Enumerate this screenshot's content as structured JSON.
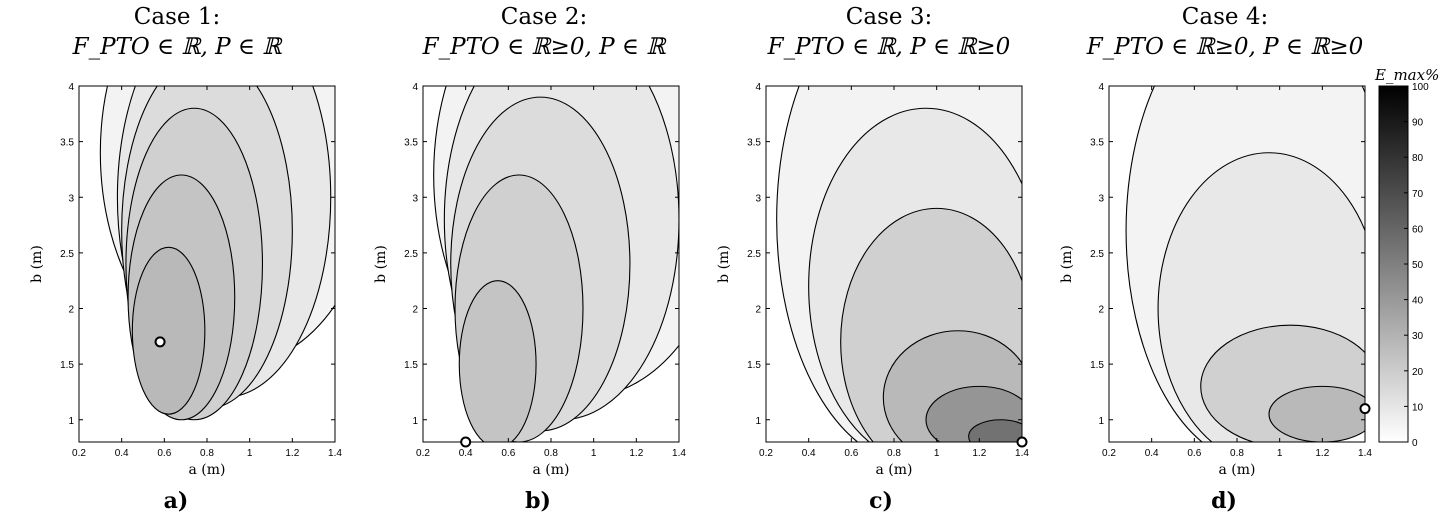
{
  "chart_data": [
    {
      "type": "contour",
      "panel": "a)",
      "title_line1": "Case 1:",
      "title_line2": "F_PTO ∈ ℝ, P ∈ ℝ",
      "xlabel": "a (m)",
      "ylabel": "b (m)",
      "xlim": [
        0.2,
        1.4
      ],
      "ylim": [
        0.8,
        4
      ],
      "xticks": [
        0.2,
        0.4,
        0.6,
        0.8,
        1,
        1.2,
        1.4
      ],
      "yticks": [
        1,
        1.5,
        2,
        2.5,
        3,
        3.5,
        4
      ],
      "optimum": {
        "a": 0.58,
        "b": 1.7
      },
      "levels": [
        {
          "value": 5,
          "center": {
            "a": 0.95,
            "b": 3.4
          },
          "radius": {
            "a": 0.65,
            "b": 1.9
          }
        },
        {
          "value": 10,
          "center": {
            "a": 0.88,
            "b": 3.0
          },
          "radius": {
            "a": 0.5,
            "b": 1.8
          }
        },
        {
          "value": 15,
          "center": {
            "a": 0.8,
            "b": 2.7
          },
          "radius": {
            "a": 0.4,
            "b": 1.6
          }
        },
        {
          "value": 20,
          "center": {
            "a": 0.74,
            "b": 2.4
          },
          "radius": {
            "a": 0.32,
            "b": 1.4
          }
        },
        {
          "value": 25,
          "center": {
            "a": 0.68,
            "b": 2.1
          },
          "radius": {
            "a": 0.25,
            "b": 1.1
          }
        },
        {
          "value": 30,
          "center": {
            "a": 0.62,
            "b": 1.8
          },
          "radius": {
            "a": 0.17,
            "b": 0.75
          }
        }
      ]
    },
    {
      "type": "contour",
      "panel": "b)",
      "title_line1": "Case 2:",
      "title_line2": "F_PTO ∈ ℝ≥0, P ∈ ℝ",
      "xlabel": "a (m)",
      "ylabel": "b (m)",
      "xlim": [
        0.2,
        1.4
      ],
      "ylim": [
        0.8,
        4
      ],
      "xticks": [
        0.2,
        0.4,
        0.6,
        0.8,
        1,
        1.2,
        1.4
      ],
      "yticks": [
        1,
        1.5,
        2,
        2.5,
        3,
        3.5,
        4
      ],
      "optimum": {
        "a": 0.4,
        "b": 0.8
      },
      "levels": [
        {
          "value": 5,
          "center": {
            "a": 0.95,
            "b": 3.2
          },
          "radius": {
            "a": 0.7,
            "b": 2.0
          }
        },
        {
          "value": 10,
          "center": {
            "a": 0.85,
            "b": 2.8
          },
          "radius": {
            "a": 0.55,
            "b": 1.8
          }
        },
        {
          "value": 15,
          "center": {
            "a": 0.75,
            "b": 2.4
          },
          "radius": {
            "a": 0.42,
            "b": 1.5
          }
        },
        {
          "value": 20,
          "center": {
            "a": 0.65,
            "b": 2.0
          },
          "radius": {
            "a": 0.3,
            "b": 1.2
          }
        },
        {
          "value": 25,
          "center": {
            "a": 0.55,
            "b": 1.5
          },
          "radius": {
            "a": 0.18,
            "b": 0.75
          }
        }
      ]
    },
    {
      "type": "contour",
      "panel": "c)",
      "title_line1": "Case 3:",
      "title_line2": "F_PTO ∈ ℝ, P ∈ ℝ≥0",
      "xlabel": "a (m)",
      "ylabel": "b (m)",
      "xlim": [
        0.2,
        1.4
      ],
      "ylim": [
        0.8,
        4
      ],
      "xticks": [
        0.2,
        0.4,
        0.6,
        0.8,
        1,
        1.2,
        1.4
      ],
      "yticks": [
        1,
        1.5,
        2,
        2.5,
        3,
        3.5,
        4
      ],
      "optimum": {
        "a": 1.4,
        "b": 0.8
      },
      "levels": [
        {
          "value": 5,
          "center": {
            "a": 0.9,
            "b": 2.8
          },
          "radius": {
            "a": 0.65,
            "b": 2.2
          }
        },
        {
          "value": 10,
          "center": {
            "a": 0.95,
            "b": 2.2
          },
          "radius": {
            "a": 0.55,
            "b": 1.6
          }
        },
        {
          "value": 20,
          "center": {
            "a": 1.0,
            "b": 1.7
          },
          "radius": {
            "a": 0.45,
            "b": 1.2
          }
        },
        {
          "value": 30,
          "center": {
            "a": 1.1,
            "b": 1.2
          },
          "radius": {
            "a": 0.35,
            "b": 0.6
          }
        },
        {
          "value": 45,
          "center": {
            "a": 1.2,
            "b": 1.0
          },
          "radius": {
            "a": 0.25,
            "b": 0.3
          }
        },
        {
          "value": 60,
          "center": {
            "a": 1.3,
            "b": 0.85
          },
          "radius": {
            "a": 0.15,
            "b": 0.15
          }
        }
      ]
    },
    {
      "type": "contour",
      "panel": "d)",
      "title_line1": "Case 4:",
      "title_line2": "F_PTO ∈ ℝ≥0, P ∈ ℝ≥0",
      "xlabel": "a (m)",
      "ylabel": "b (m)",
      "xlim": [
        0.2,
        1.4
      ],
      "ylim": [
        0.8,
        4
      ],
      "xticks": [
        0.2,
        0.4,
        0.6,
        0.8,
        1,
        1.2,
        1.4
      ],
      "yticks": [
        1,
        1.5,
        2,
        2.5,
        3,
        3.5,
        4
      ],
      "optimum": {
        "a": 1.4,
        "b": 1.1
      },
      "levels": [
        {
          "value": 5,
          "center": {
            "a": 0.9,
            "b": 2.7
          },
          "radius": {
            "a": 0.62,
            "b": 2.1
          }
        },
        {
          "value": 10,
          "center": {
            "a": 0.95,
            "b": 2.0
          },
          "radius": {
            "a": 0.52,
            "b": 1.4
          }
        },
        {
          "value": 20,
          "center": {
            "a": 1.05,
            "b": 1.3
          },
          "radius": {
            "a": 0.42,
            "b": 0.55
          }
        },
        {
          "value": 30,
          "center": {
            "a": 1.2,
            "b": 1.05
          },
          "radius": {
            "a": 0.25,
            "b": 0.25
          }
        }
      ]
    }
  ],
  "colorbar": {
    "label": "E_max%",
    "min": 0,
    "max": 100,
    "ticks": [
      0,
      10,
      20,
      30,
      40,
      50,
      60,
      70,
      80,
      90,
      100
    ],
    "color_low": "#ffffff",
    "color_high": "#000000"
  }
}
